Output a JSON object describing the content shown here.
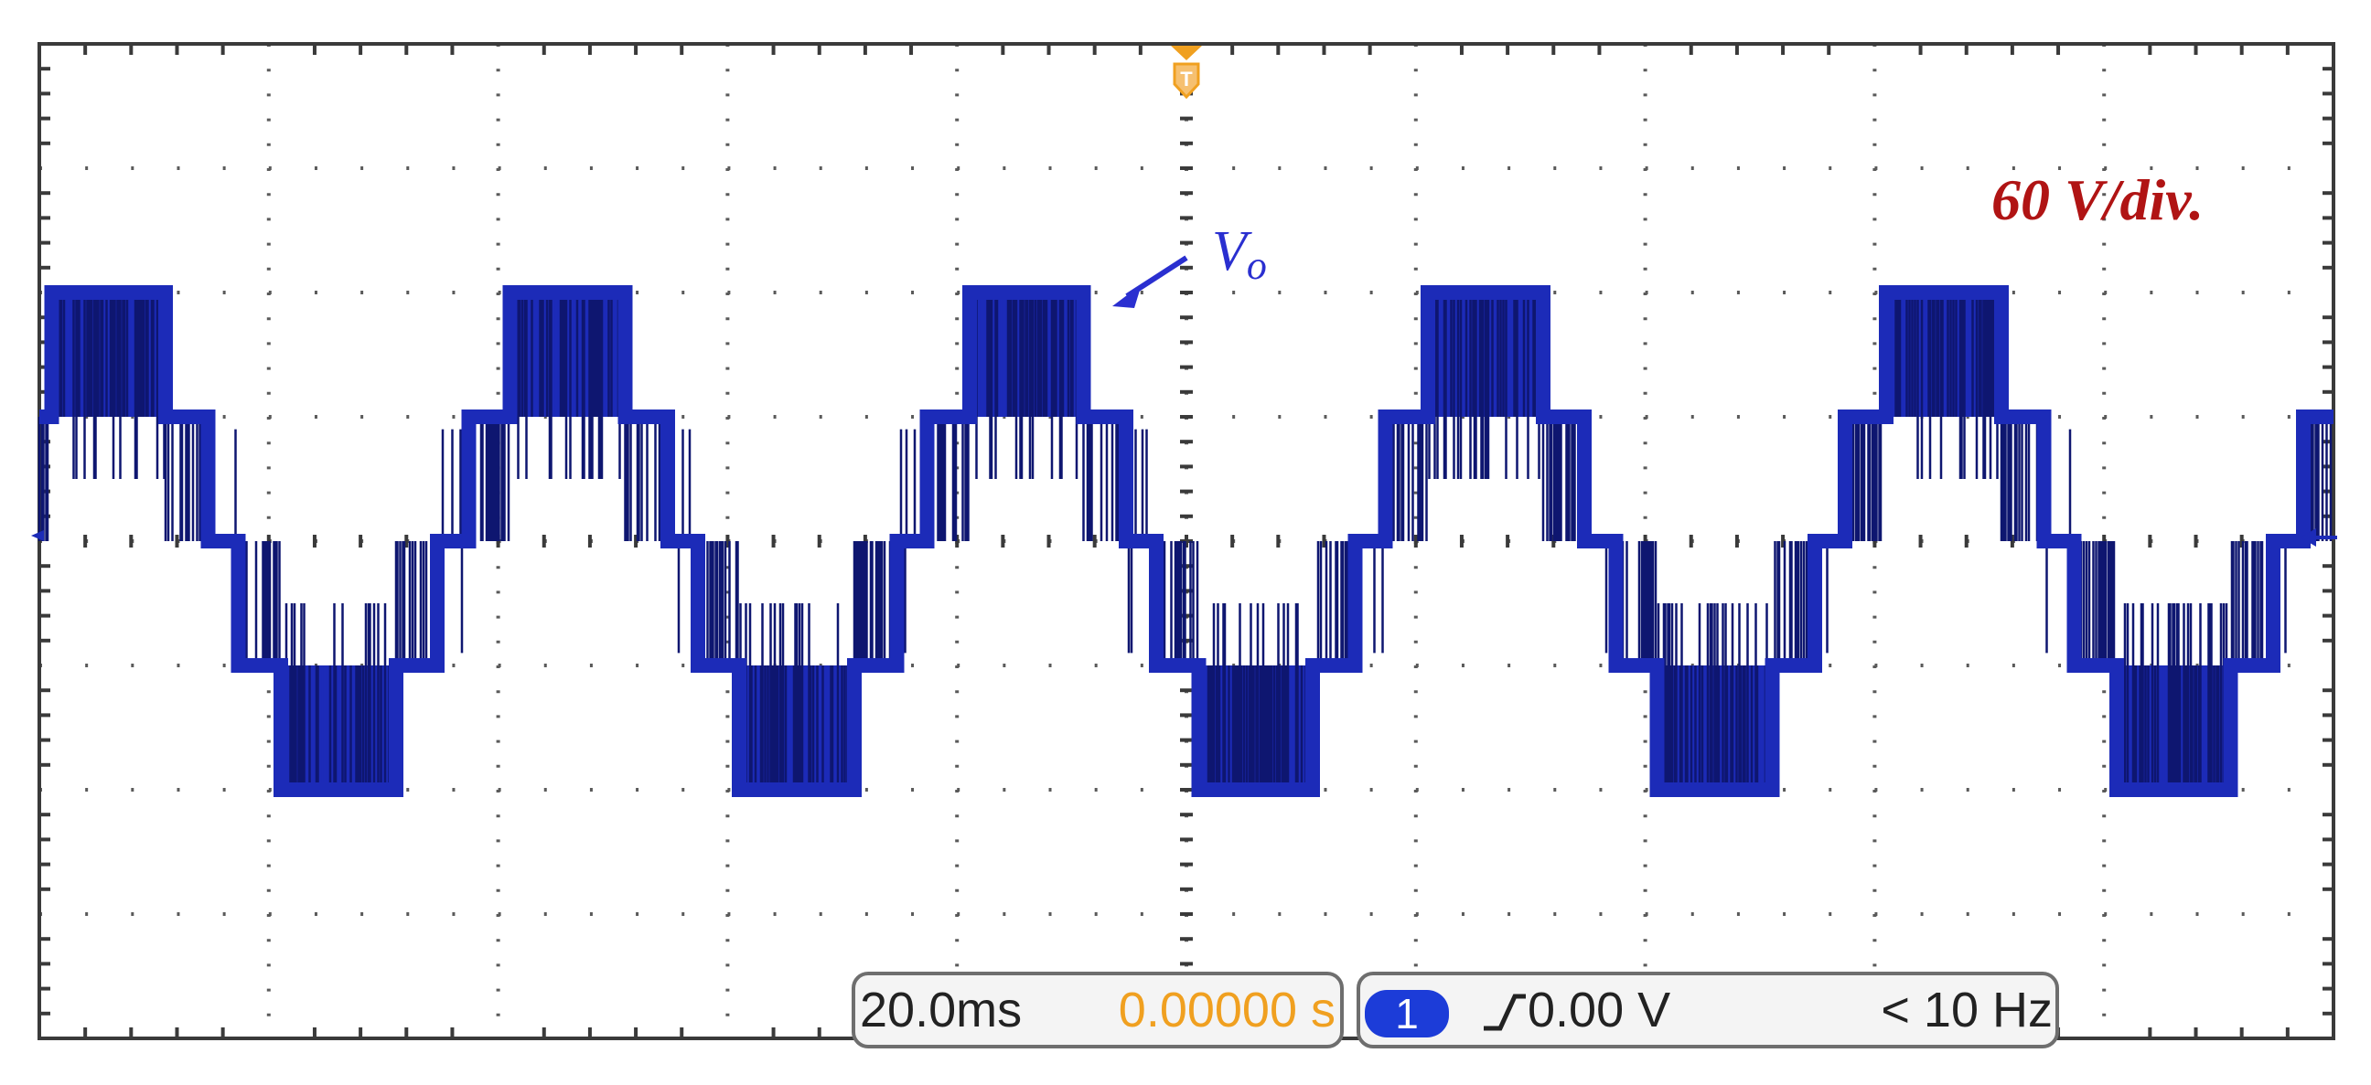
{
  "chart_data": {
    "type": "line",
    "title": "",
    "xlabel": "",
    "ylabel": "",
    "x_divisions": 10,
    "y_divisions": 8,
    "grid": true,
    "time_per_div_ms": 20,
    "volts_per_div": 60,
    "y_unit": "V",
    "ylim": [
      -240,
      240
    ],
    "xlim_ms": [
      0,
      200
    ],
    "series": [
      {
        "name": "Vo",
        "color": "#1c2bb8",
        "waveform": "five-level staircase",
        "period_ms": 40,
        "levels_V": [
          -120,
          -60,
          0,
          60,
          120
        ],
        "phase_ms": 4,
        "pwm_noise": true
      }
    ],
    "annotations": {
      "scale": "60 V/div.",
      "trace_label": "V",
      "trace_label_sub": "o"
    }
  },
  "status_bar": {
    "time_base": "20.0ms",
    "trigger_position": "0.00000 s",
    "channel": "1",
    "trigger_level": "0.00 V",
    "frequency": "< 10 Hz"
  },
  "colors": {
    "trace": "#1c2bb8",
    "annotation_scale": "#b01414",
    "annotation_label": "#2a2fd0",
    "trigger_marker": "#f0a020",
    "position_text": "#f0a020",
    "channel_badge": "#1c3cd8"
  }
}
